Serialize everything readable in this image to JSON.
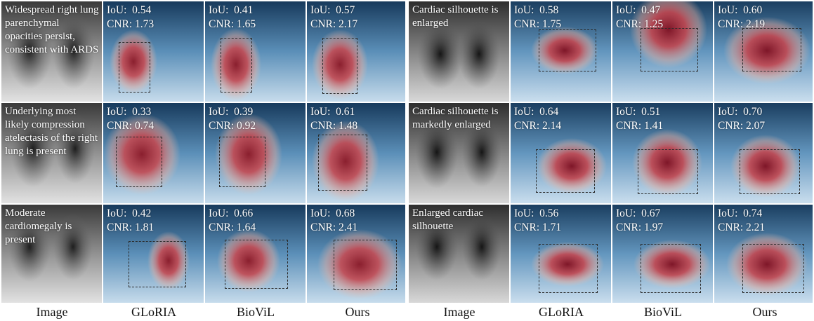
{
  "column_labels": [
    "Image",
    "GLoRIA",
    "BioViL",
    "Ours",
    "Image",
    "GLoRIA",
    "BioViL",
    "Ours"
  ],
  "panels": [
    {
      "rows": [
        {
          "caption": "Widespread right lung parenchymal opacities persist, consistent with ARDS",
          "methods": [
            {
              "name": "GLoRIA",
              "iou": "IoU:  0.54",
              "cnr": "CNR: 1.73"
            },
            {
              "name": "BioViL",
              "iou": "IoU:  0.41",
              "cnr": "CNR: 1.65"
            },
            {
              "name": "Ours",
              "iou": "IoU:  0.57",
              "cnr": "CNR: 2.17"
            }
          ]
        },
        {
          "caption": "Underlying most likely compression atelectasis of the right lung is present",
          "methods": [
            {
              "name": "GLoRIA",
              "iou": "IoU:  0.33",
              "cnr": "CNR: 0.74"
            },
            {
              "name": "BioViL",
              "iou": "IoU:  0.39",
              "cnr": "CNR: 0.92"
            },
            {
              "name": "Ours",
              "iou": "IoU:  0.61",
              "cnr": "CNR: 1.48"
            }
          ]
        },
        {
          "caption": "Moderate cardiomegaly is present",
          "methods": [
            {
              "name": "GLoRIA",
              "iou": "IoU:  0.42",
              "cnr": "CNR: 1.81"
            },
            {
              "name": "BioViL",
              "iou": "IoU:  0.66",
              "cnr": "CNR: 1.64"
            },
            {
              "name": "Ours",
              "iou": "IoU:  0.68",
              "cnr": "CNR: 2.41"
            }
          ]
        }
      ]
    },
    {
      "rows": [
        {
          "caption": "Cardiac silhouette is enlarged",
          "methods": [
            {
              "name": "GLoRIA",
              "iou": "IoU:  0.58",
              "cnr": "CNR: 1.75"
            },
            {
              "name": "BioViL",
              "iou": "IoU:  0.47",
              "cnr": "CNR: 1.25"
            },
            {
              "name": "Ours",
              "iou": "IoU:  0.60",
              "cnr": "CNR: 2.19"
            }
          ]
        },
        {
          "caption": "Cardiac silhouette is markedly enlarged",
          "methods": [
            {
              "name": "GLoRIA",
              "iou": "IoU:  0.64",
              "cnr": "CNR: 2.14"
            },
            {
              "name": "BioViL",
              "iou": "IoU:  0.51",
              "cnr": "CNR: 1.41"
            },
            {
              "name": "Ours",
              "iou": "IoU:  0.70",
              "cnr": "CNR: 2.07"
            }
          ]
        },
        {
          "caption": "Enlarged cardiac silhouette",
          "methods": [
            {
              "name": "GLoRIA",
              "iou": "IoU:  0.56",
              "cnr": "CNR: 1.71"
            },
            {
              "name": "BioViL",
              "iou": "IoU:  0.67",
              "cnr": "CNR: 1.97"
            },
            {
              "name": "Ours",
              "iou": "IoU:  0.74",
              "cnr": "CNR: 2.21"
            }
          ]
        }
      ]
    }
  ]
}
